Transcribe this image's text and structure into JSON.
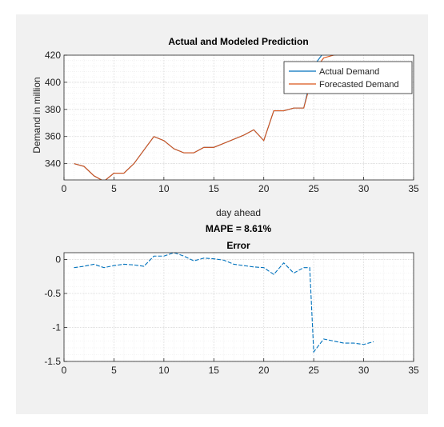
{
  "chart_data": [
    {
      "type": "line",
      "title": "Actual and Modeled Prediction",
      "xlabel": "day ahead",
      "ylabel": "Demand in million",
      "xlim": [
        0,
        35
      ],
      "ylim": [
        328,
        420
      ],
      "xticks": [
        0,
        5,
        10,
        15,
        20,
        25,
        30,
        35
      ],
      "yticks": [
        340,
        360,
        380,
        400,
        420
      ],
      "grid": true,
      "minor_grid": true,
      "legend_position": "top-right",
      "series": [
        {
          "name": "Actual Demand",
          "color": "#0072bd",
          "x": [
            1,
            2,
            3,
            4,
            5,
            6,
            7,
            8,
            9,
            10,
            11,
            12,
            13,
            14,
            15,
            16,
            17,
            18,
            19,
            20,
            21,
            22,
            23,
            24,
            25,
            26,
            27,
            28,
            29,
            30,
            31
          ],
          "y": [
            340,
            338,
            331,
            327,
            333,
            333,
            340,
            350,
            360,
            357,
            351,
            348,
            348,
            352,
            352,
            355,
            358,
            361,
            365,
            357,
            379,
            379,
            381,
            381,
            412,
            422,
            424,
            424,
            424,
            424,
            424
          ]
        },
        {
          "name": "Forecasted Demand",
          "color": "#d95319",
          "x": [
            1,
            2,
            3,
            4,
            5,
            6,
            7,
            8,
            9,
            10,
            11,
            12,
            13,
            14,
            15,
            16,
            17,
            18,
            19,
            20,
            21,
            22,
            23,
            24,
            25,
            26,
            27,
            28,
            29,
            30,
            31
          ],
          "y": [
            340,
            338,
            331,
            327,
            333,
            333,
            340,
            350,
            360,
            357,
            351,
            348,
            348,
            352,
            352,
            355,
            358,
            361,
            365,
            357,
            379,
            379,
            381,
            381,
            408,
            418,
            420,
            421,
            421,
            421,
            421
          ]
        }
      ]
    },
    {
      "type": "line",
      "title_line1": "MAPE = 8.61%",
      "title_line2": "Error",
      "xlabel": "",
      "ylabel": "",
      "xlim": [
        0,
        35
      ],
      "ylim": [
        -1.5,
        0.1
      ],
      "xticks": [
        0,
        5,
        10,
        15,
        20,
        25,
        30,
        35
      ],
      "yticks": [
        0,
        -0.5,
        -1,
        -1.5
      ],
      "grid": true,
      "minor_grid": true,
      "series": [
        {
          "name": "",
          "color": "#0072bd",
          "dashed": true,
          "x": [
            1,
            2,
            3,
            4,
            5,
            6,
            7,
            8,
            9,
            10,
            11,
            12,
            13,
            14,
            15,
            16,
            17,
            18,
            19,
            20,
            21,
            22,
            23,
            24,
            24.6,
            25,
            26,
            27,
            28,
            29,
            30,
            31
          ],
          "y": [
            -0.12,
            -0.1,
            -0.07,
            -0.12,
            -0.09,
            -0.07,
            -0.08,
            -0.1,
            0.05,
            0.05,
            0.1,
            0.05,
            -0.02,
            0.02,
            0.01,
            -0.01,
            -0.07,
            -0.09,
            -0.11,
            -0.12,
            -0.22,
            -0.05,
            -0.2,
            -0.12,
            -0.12,
            -1.36,
            -1.17,
            -1.2,
            -1.23,
            -1.23,
            -1.25,
            -1.21
          ]
        }
      ]
    }
  ]
}
